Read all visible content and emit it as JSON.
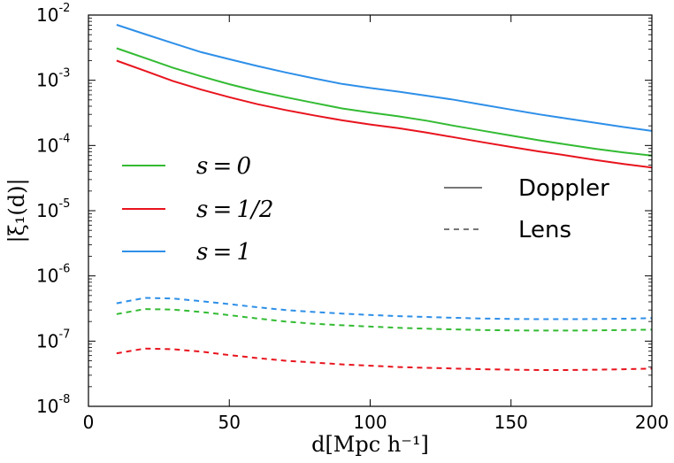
{
  "chart_data": {
    "type": "line",
    "xlabel": "d[Mpc h⁻¹]",
    "ylabel": "|ξ₁(d)|",
    "xlim": [
      0,
      200
    ],
    "ylim": [
      1e-08,
      0.01
    ],
    "yscale": "log",
    "x_ticks": [
      "0",
      "50",
      "100",
      "150",
      "200"
    ],
    "y_ticks": [
      {
        "base": "10",
        "exp": "-8",
        "value": 1e-08
      },
      {
        "base": "10",
        "exp": "-7",
        "value": 1e-07
      },
      {
        "base": "10",
        "exp": "-6",
        "value": 1e-06
      },
      {
        "base": "10",
        "exp": "-5",
        "value": 1e-05
      },
      {
        "base": "10",
        "exp": "-4",
        "value": 0.0001
      },
      {
        "base": "10",
        "exp": "-3",
        "value": 0.001
      },
      {
        "base": "10",
        "exp": "-2",
        "value": 0.01
      }
    ],
    "x": [
      10,
      20,
      30,
      40,
      50,
      60,
      70,
      80,
      90,
      100,
      110,
      120,
      130,
      140,
      150,
      160,
      170,
      180,
      190,
      200
    ],
    "series": [
      {
        "name": "s=0 Doppler",
        "color": "#33bb33",
        "style": "solid",
        "values": [
          0.0031,
          0.0022,
          0.00155,
          0.00115,
          0.00087,
          0.00068,
          0.00055,
          0.00045,
          0.00037,
          0.00032,
          0.00028,
          0.00024,
          0.0002,
          0.000168,
          0.000142,
          0.00012,
          0.000103,
          8.9e-05,
          7.8e-05,
          7e-05
        ]
      },
      {
        "name": "s=1/2 Doppler",
        "color": "#e8141e",
        "style": "solid",
        "values": [
          0.002,
          0.0014,
          0.00097,
          0.00072,
          0.00055,
          0.00043,
          0.00035,
          0.00029,
          0.000243,
          0.00021,
          0.000185,
          0.000158,
          0.000133,
          0.000112,
          9.5e-05,
          8.1e-05,
          7e-05,
          6e-05,
          5.2e-05,
          4.6e-05
        ]
      },
      {
        "name": "s=1 Doppler",
        "color": "#2e8fe8",
        "style": "solid",
        "values": [
          0.0071,
          0.0051,
          0.0037,
          0.0027,
          0.0021,
          0.00165,
          0.00132,
          0.00107,
          0.00088,
          0.00076,
          0.00067,
          0.00058,
          0.0005,
          0.00042,
          0.000355,
          0.0003,
          0.000258,
          0.000223,
          0.000192,
          0.000167
        ]
      },
      {
        "name": "s=0 Lens",
        "color": "#33bb33",
        "style": "dashed",
        "values": [
          2.6e-07,
          3.1e-07,
          3.05e-07,
          2.8e-07,
          2.5e-07,
          2.22e-07,
          2e-07,
          1.85e-07,
          1.75e-07,
          1.67e-07,
          1.6e-07,
          1.55e-07,
          1.51e-07,
          1.48e-07,
          1.46e-07,
          1.45e-07,
          1.45e-07,
          1.46e-07,
          1.48e-07,
          1.5e-07
        ]
      },
      {
        "name": "s=1/2 Lens",
        "color": "#e8141e",
        "style": "dashed",
        "values": [
          6.5e-08,
          7.7e-08,
          7.5e-08,
          6.9e-08,
          6.1e-08,
          5.5e-08,
          5e-08,
          4.7e-08,
          4.4e-08,
          4.2e-08,
          4e-08,
          3.9e-08,
          3.8e-08,
          3.7e-08,
          3.65e-08,
          3.6e-08,
          3.6e-08,
          3.65e-08,
          3.7e-08,
          3.8e-08
        ]
      },
      {
        "name": "s=1 Lens",
        "color": "#2e8fe8",
        "style": "dashed",
        "values": [
          3.8e-07,
          4.6e-07,
          4.5e-07,
          4.1e-07,
          3.7e-07,
          3.3e-07,
          3e-07,
          2.8e-07,
          2.65e-07,
          2.52e-07,
          2.42e-07,
          2.35e-07,
          2.28e-07,
          2.22e-07,
          2.19e-07,
          2.17e-07,
          2.17e-07,
          2.18e-07,
          2.21e-07,
          2.25e-07
        ]
      }
    ],
    "legend_s": [
      {
        "label": "s = 0",
        "color": "#33bb33"
      },
      {
        "label": "s = 1/2",
        "color": "#e8141e"
      },
      {
        "label": "s = 1",
        "color": "#2e8fe8"
      }
    ],
    "legend_style": [
      {
        "label": "Doppler",
        "style": "solid"
      },
      {
        "label": "Lens",
        "style": "dashed"
      }
    ],
    "legend_placement": "left-center and right-center",
    "grid": false
  }
}
